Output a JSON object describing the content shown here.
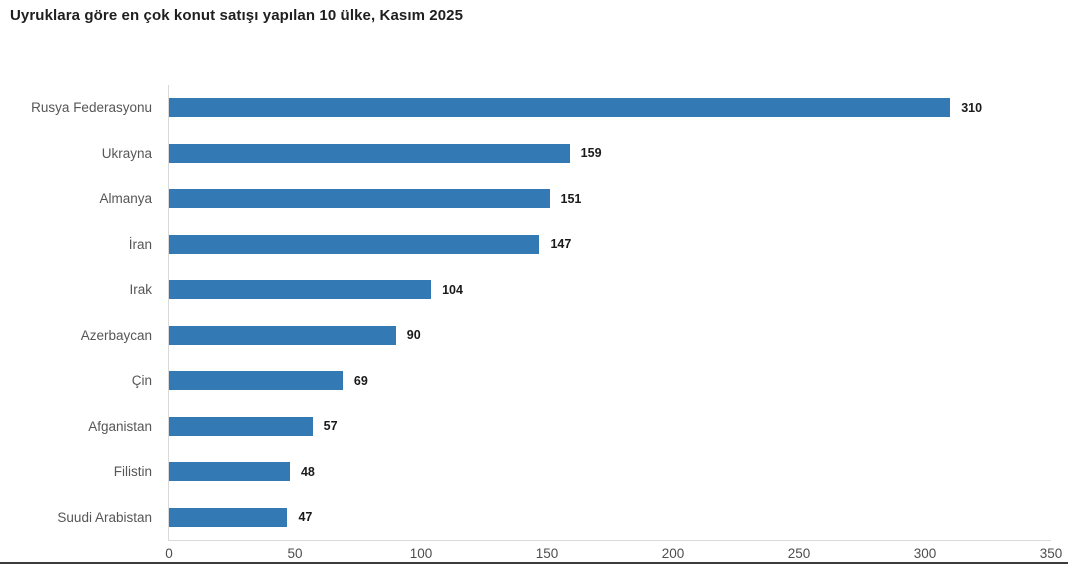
{
  "chart_data": {
    "type": "bar",
    "orientation": "horizontal",
    "title": "Uyruklara göre en çok konut satışı yapılan 10 ülke, Kasım 2025",
    "categories": [
      "Rusya Federasyonu",
      "Ukrayna",
      "Almanya",
      "İran",
      "Irak",
      "Azerbaycan",
      "Çin",
      "Afganistan",
      "Filistin",
      "Suudi Arabistan"
    ],
    "values": [
      310,
      159,
      151,
      147,
      104,
      90,
      69,
      57,
      48,
      47
    ],
    "xlabel": "",
    "ylabel": "",
    "xlim": [
      0,
      350
    ],
    "x_ticks": [
      0,
      50,
      100,
      150,
      200,
      250,
      300,
      350
    ],
    "grid": false,
    "legend": "none",
    "value_labels": true,
    "colors": {
      "bar": "#3379b4",
      "axis_line": "#d9d9d9",
      "bottom_rule": "#3c3c3c",
      "title_text": "#1f1f1f",
      "category_text": "#565656",
      "tick_text": "#4d4d4d",
      "value_text": "#1a1a1a"
    }
  }
}
